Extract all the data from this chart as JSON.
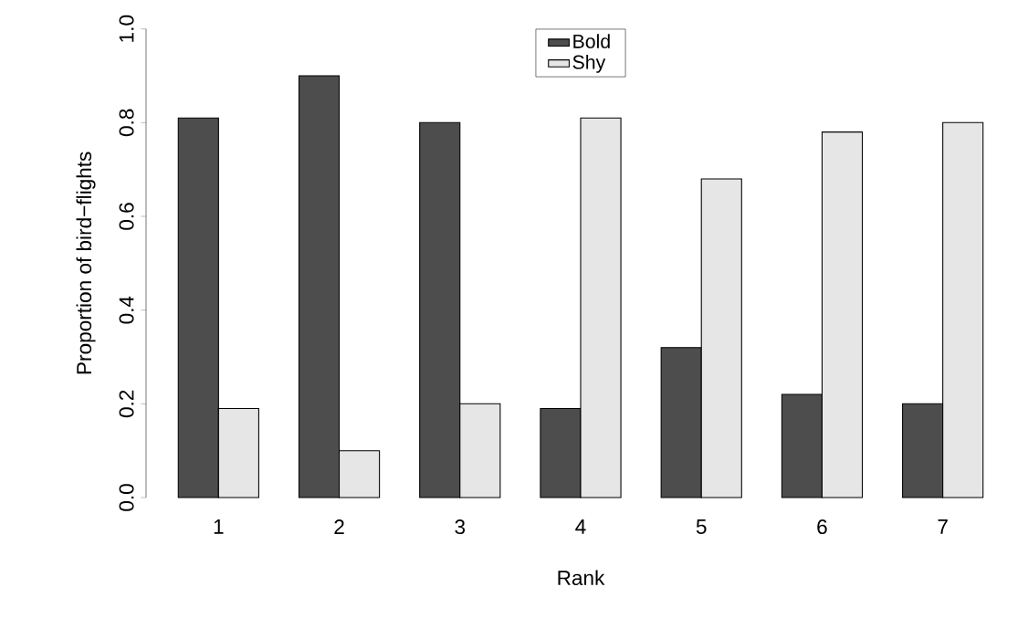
{
  "chart_data": {
    "type": "bar",
    "xlabel": "Rank",
    "ylabel": "Proportion of bird−flights",
    "categories": [
      "1",
      "2",
      "3",
      "4",
      "5",
      "6",
      "7"
    ],
    "series": [
      {
        "name": "Bold",
        "color": "#4d4d4d",
        "values": [
          0.81,
          0.9,
          0.8,
          0.19,
          0.32,
          0.22,
          0.2
        ]
      },
      {
        "name": "Shy",
        "color": "#e6e6e6",
        "values": [
          0.19,
          0.1,
          0.2,
          0.81,
          0.68,
          0.78,
          0.8
        ]
      }
    ],
    "ylim": [
      0,
      1
    ],
    "yticks": [
      {
        "value": 0,
        "label": "0.0"
      },
      0.2,
      0.4,
      0.6,
      0.8,
      {
        "value": 1,
        "label": "1.0"
      }
    ],
    "legend": "top"
  }
}
